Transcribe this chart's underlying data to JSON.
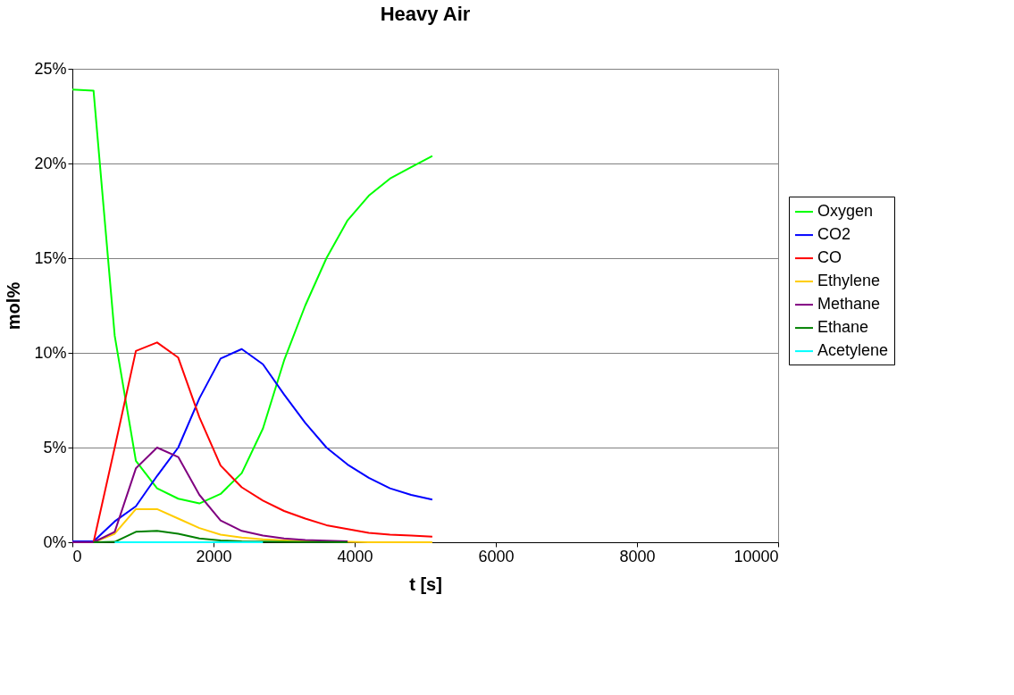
{
  "chart_data": {
    "type": "line",
    "title": "Heavy Air",
    "xlabel": "t [s]",
    "ylabel": "mol%",
    "x": [
      0,
      300,
      600,
      900,
      1200,
      1500,
      1800,
      2100,
      2400,
      2700,
      3000,
      3300,
      3600,
      3900,
      4200,
      4500,
      4800,
      5100
    ],
    "series": [
      {
        "name": "Oxygen",
        "color": "#00ff00",
        "values": [
          23.9,
          23.85,
          10.9,
          4.3,
          2.85,
          2.3,
          2.05,
          2.55,
          3.65,
          6.0,
          9.6,
          12.5,
          15.0,
          17.0,
          18.3,
          19.2,
          19.8,
          20.4
        ]
      },
      {
        "name": "CO2",
        "color": "#0000ff",
        "values": [
          0.05,
          0.05,
          1.1,
          1.9,
          3.5,
          5.0,
          7.6,
          9.7,
          10.2,
          9.4,
          7.8,
          6.3,
          5.0,
          4.1,
          3.4,
          2.85,
          2.5,
          2.25
        ]
      },
      {
        "name": "CO",
        "color": "#ff0000",
        "values": [
          0,
          0,
          5.0,
          10.1,
          10.55,
          9.75,
          6.6,
          4.05,
          2.9,
          2.2,
          1.65,
          1.25,
          0.9,
          0.7,
          0.5,
          0.4,
          0.35,
          0.3
        ]
      },
      {
        "name": "Ethylene",
        "color": "#ffcc00",
        "values": [
          0,
          0,
          0.45,
          1.75,
          1.75,
          1.25,
          0.75,
          0.4,
          0.25,
          0.15,
          0.1,
          0.05,
          0.05,
          0.02,
          0,
          0,
          0,
          0
        ]
      },
      {
        "name": "Methane",
        "color": "#800080",
        "x": [
          0,
          300,
          600,
          900,
          1200,
          1500,
          1800,
          2100,
          2400,
          2700,
          3000,
          3300,
          3600,
          3900
        ],
        "values": [
          0,
          0,
          0.55,
          3.9,
          5.0,
          4.5,
          2.5,
          1.15,
          0.6,
          0.35,
          0.2,
          0.12,
          0.08,
          0.05
        ]
      },
      {
        "name": "Ethane",
        "color": "#008000",
        "x": [
          300,
          600,
          900,
          1200,
          1500,
          1800,
          2100,
          2400,
          2700,
          3000,
          3300,
          3600,
          3900
        ],
        "values": [
          0,
          0.02,
          0.55,
          0.6,
          0.45,
          0.2,
          0.1,
          0.05,
          0.03,
          0.02,
          0.01,
          0.01,
          0
        ]
      },
      {
        "name": "Acetylene",
        "color": "#00ffff",
        "x": [
          600,
          900,
          1200,
          1500,
          1800,
          2100,
          2400,
          2700
        ],
        "values": [
          0,
          0,
          0,
          0,
          0,
          0,
          0,
          0
        ]
      }
    ],
    "xlim": [
      0,
      10000
    ],
    "xticks": [
      0,
      2000,
      4000,
      6000,
      8000,
      10000
    ],
    "ylim": [
      0,
      25
    ],
    "yticks": [
      {
        "value": 0,
        "label": "0%"
      },
      {
        "value": 5,
        "label": "5%"
      },
      {
        "value": 10,
        "label": "10%"
      },
      {
        "value": 15,
        "label": "15%"
      },
      {
        "value": 20,
        "label": "20%"
      },
      {
        "value": 25,
        "label": "25%"
      }
    ],
    "grid": "y",
    "legend": "right",
    "marker": "none",
    "line_style": "solid"
  }
}
